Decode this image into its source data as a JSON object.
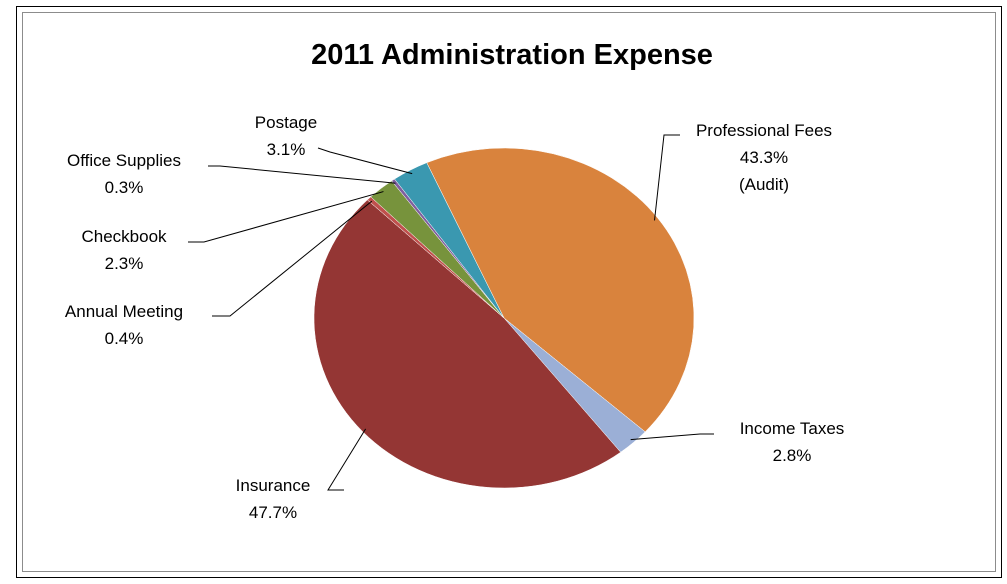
{
  "chart_data": {
    "type": "pie",
    "title": "2011 Administration Expense",
    "slices": [
      {
        "name": "Professional Fees",
        "value": 43.3,
        "value_label": "43.3%",
        "note": "(Audit)",
        "color": "#d9833d"
      },
      {
        "name": "Income Taxes",
        "value": 2.8,
        "value_label": "2.8%",
        "color": "#9bafd6"
      },
      {
        "name": "Insurance",
        "value": 47.7,
        "value_label": "47.7%",
        "color": "#943634"
      },
      {
        "name": "Annual Meeting",
        "value": 0.4,
        "value_label": "0.4%",
        "color": "#c0504d"
      },
      {
        "name": "Checkbook",
        "value": 2.3,
        "value_label": "2.3%",
        "color": "#77933c"
      },
      {
        "name": "Office Supplies",
        "value": 0.3,
        "value_label": "0.3%",
        "color": "#7f5f9e"
      },
      {
        "name": "Postage",
        "value": 3.1,
        "value_label": "3.1%",
        "color": "#3a98b0"
      }
    ],
    "legend": "none"
  }
}
